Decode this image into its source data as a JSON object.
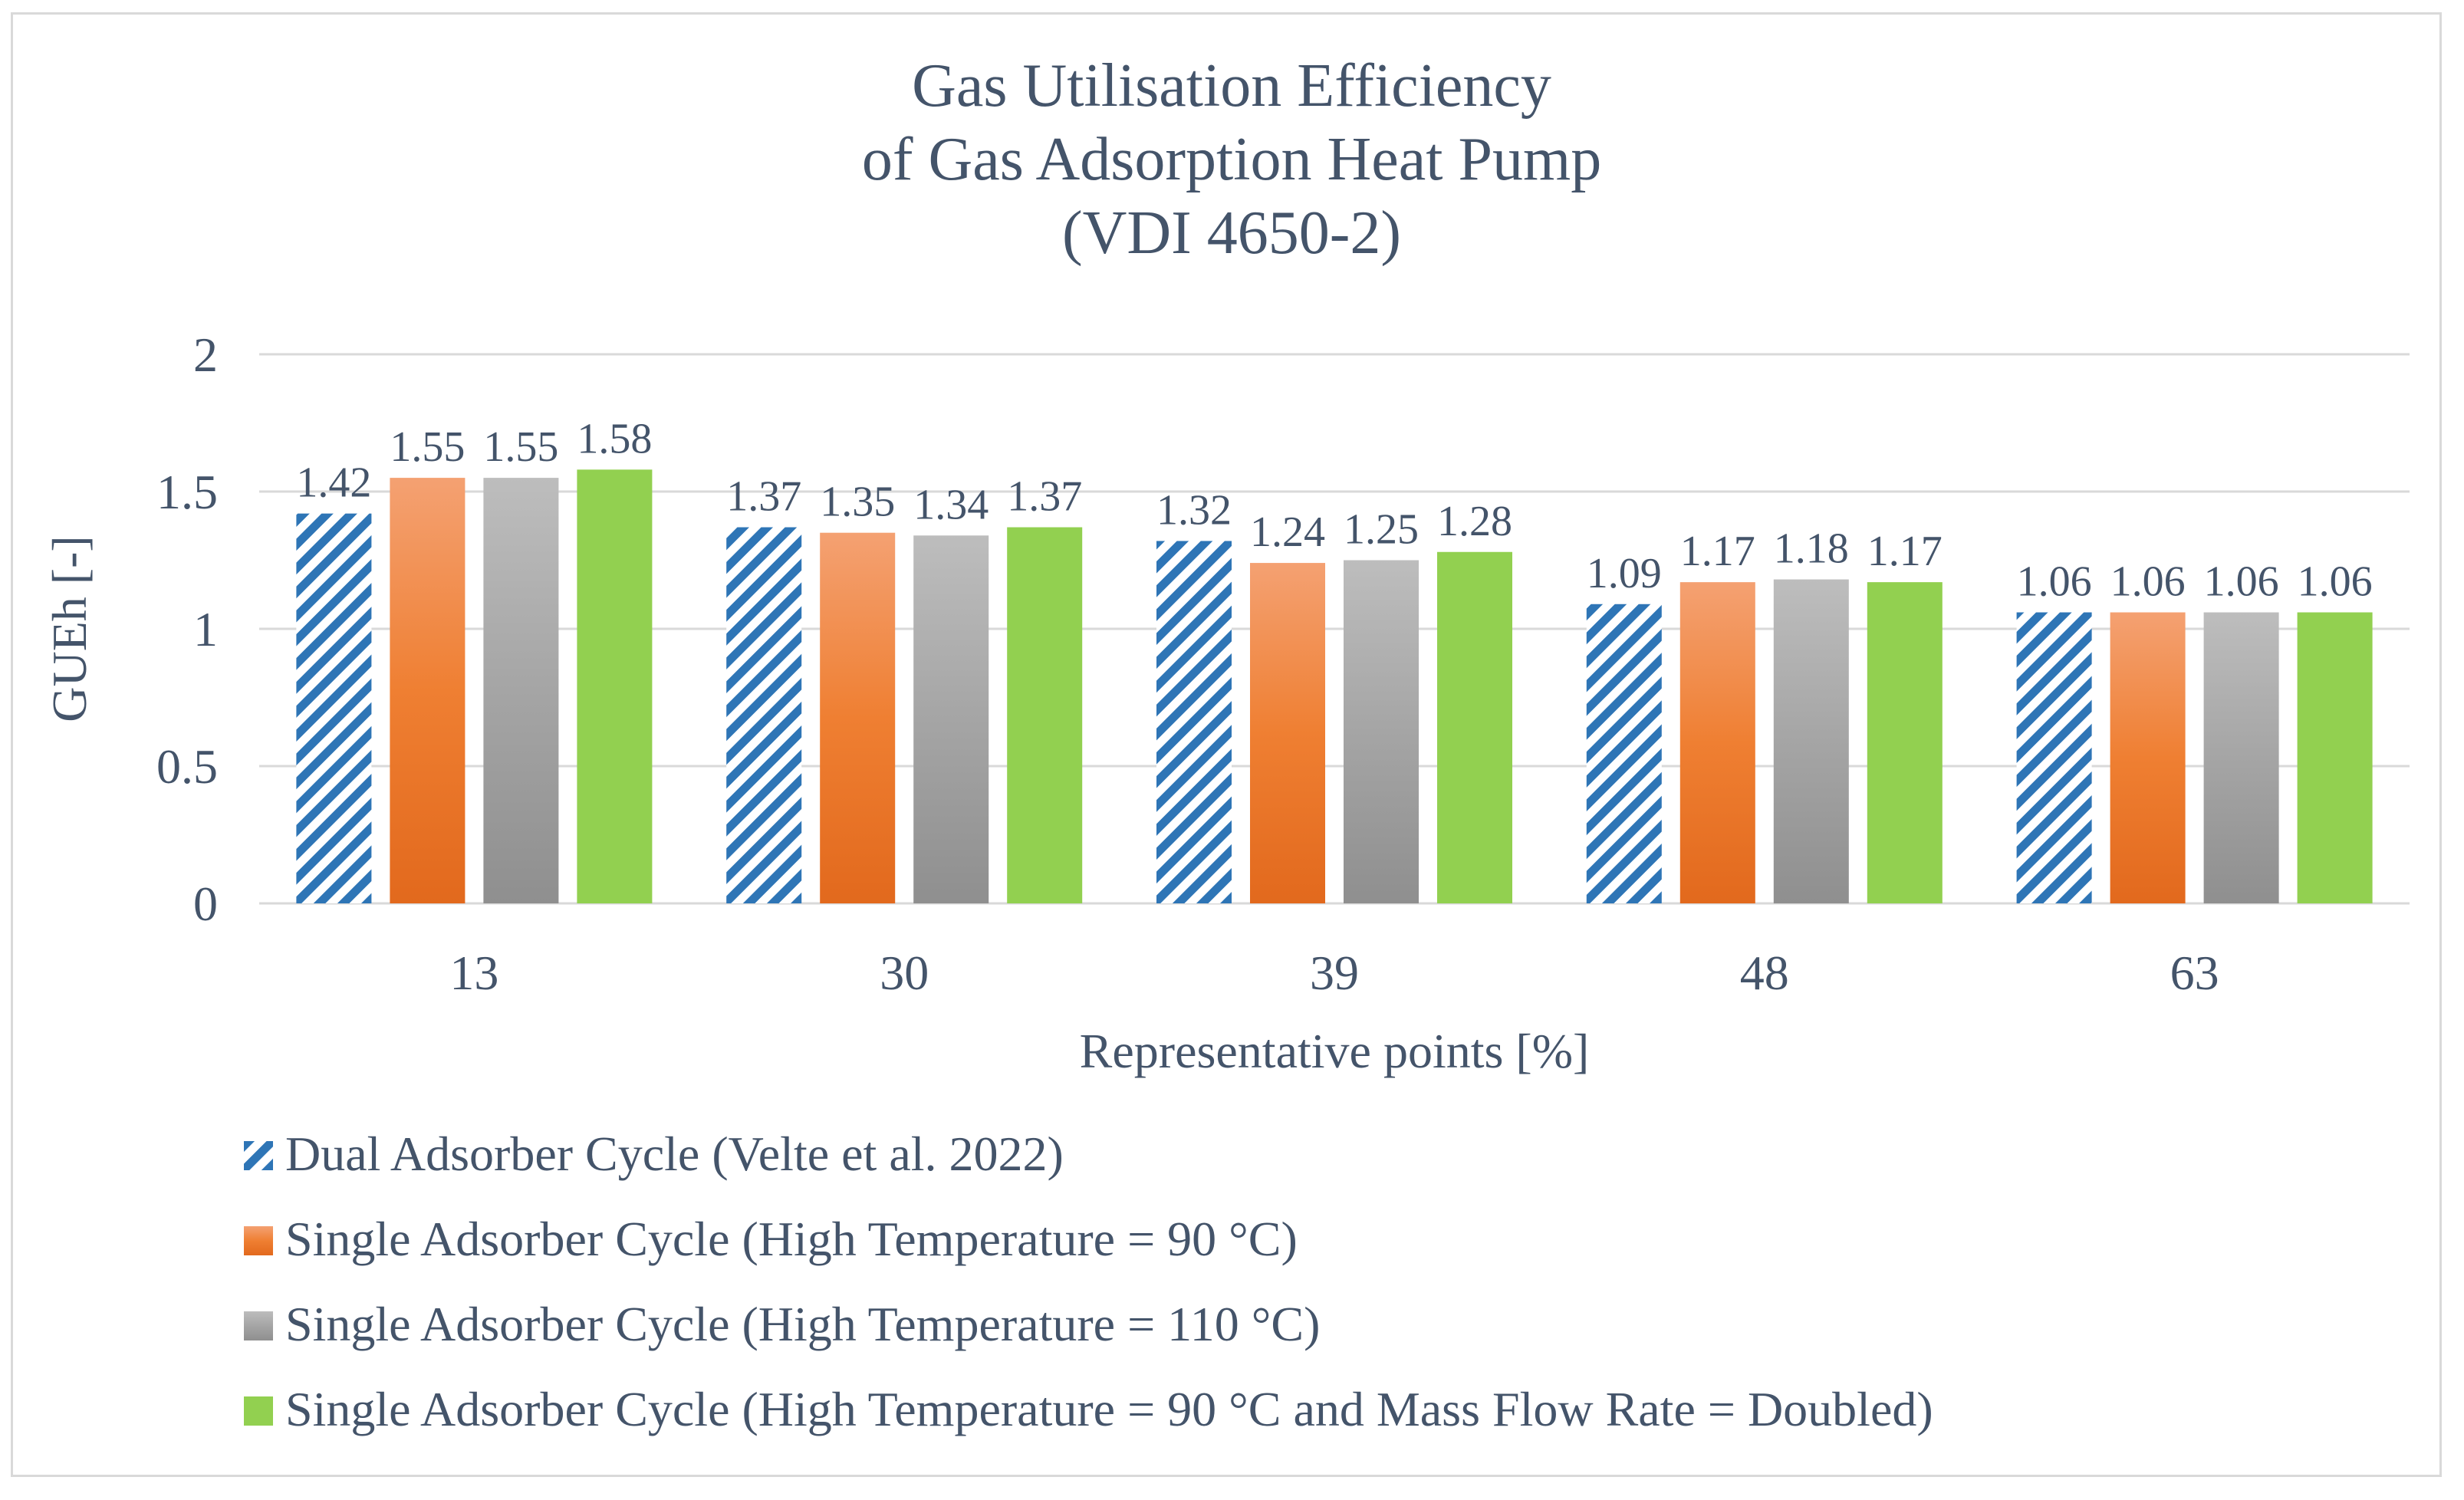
{
  "chart_data": {
    "type": "bar",
    "title_lines": [
      "Gas Utilisation Efficiency",
      "of Gas Adsorption Heat Pump",
      "(VDI 4650-2)"
    ],
    "xlabel": "Representative points [%]",
    "ylabel": "GUEh [-]",
    "categories": [
      "13",
      "30",
      "39",
      "48",
      "63"
    ],
    "ylim": [
      0,
      2
    ],
    "yticks": [
      "0",
      "0.5",
      "1",
      "1.5",
      "2"
    ],
    "grid": true,
    "legend_position": "bottom",
    "series": [
      {
        "name": "Dual Adsorber Cycle (Velte et al. 2022)",
        "values": [
          1.42,
          1.37,
          1.32,
          1.09,
          1.06
        ],
        "labels": [
          "1.42",
          "1.37",
          "1.32",
          "1.09",
          "1.06"
        ],
        "color": "#2e75b6",
        "fill": "hatch"
      },
      {
        "name": "Single Adsorber Cycle (High Temperature = 90 °C)",
        "values": [
          1.55,
          1.35,
          1.24,
          1.17,
          1.06
        ],
        "labels": [
          "1.55",
          "1.35",
          "1.24",
          "1.17",
          "1.06"
        ],
        "color": "#ed7d31",
        "fill": "gradient"
      },
      {
        "name": "Single Adsorber Cycle (High Temperature = 110 °C)",
        "values": [
          1.55,
          1.34,
          1.25,
          1.18,
          1.06
        ],
        "labels": [
          "1.55",
          "1.34",
          "1.25",
          "1.18",
          "1.06"
        ],
        "color": "#a5a5a5",
        "fill": "gradient"
      },
      {
        "name": "Single Adsorber Cycle (High Temperature = 90 °C and Mass Flow Rate = Doubled)",
        "values": [
          1.58,
          1.37,
          1.28,
          1.17,
          1.06
        ],
        "labels": [
          "1.58",
          "1.37",
          "1.28",
          "1.17",
          "1.06"
        ],
        "color": "#92d050",
        "fill": "solid"
      }
    ]
  }
}
